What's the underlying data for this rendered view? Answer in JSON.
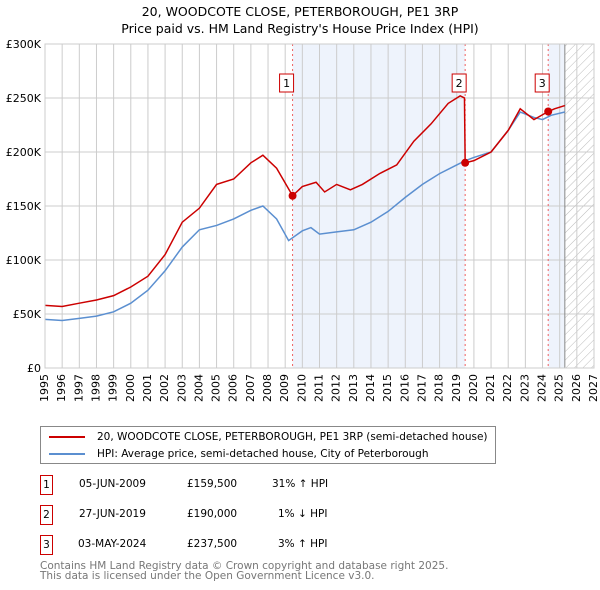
{
  "title": "20, WOODCOTE CLOSE, PETERBOROUGH, PE1 3RP",
  "subtitle": "Price paid vs. HM Land Registry's House Price Index (HPI)",
  "chart_data": {
    "type": "line",
    "xlim": [
      1995,
      2027
    ],
    "ylim": [
      0,
      300000
    ],
    "x_ticks": [
      "1995",
      "1996",
      "1997",
      "1998",
      "1999",
      "2000",
      "2001",
      "2002",
      "2003",
      "2004",
      "2005",
      "2006",
      "2007",
      "2008",
      "2009",
      "2010",
      "2011",
      "2012",
      "2013",
      "2014",
      "2015",
      "2016",
      "2017",
      "2018",
      "2019",
      "2020",
      "2021",
      "2022",
      "2023",
      "2024",
      "2025",
      "2026",
      "2027"
    ],
    "y_ticks": [
      {
        "v": 0,
        "label": "£0"
      },
      {
        "v": 50000,
        "label": "£50K"
      },
      {
        "v": 100000,
        "label": "£100K"
      },
      {
        "v": 150000,
        "label": "£150K"
      },
      {
        "v": 200000,
        "label": "£200K"
      },
      {
        "v": 250000,
        "label": "£250K"
      },
      {
        "v": 300000,
        "label": "£300K"
      }
    ],
    "grid": true,
    "shaded_ranges": [
      [
        2009.43,
        2019.49
      ],
      [
        2024.33,
        2025.3
      ]
    ],
    "forecast_hatch_from": 2025.3,
    "series": [
      {
        "name": "20, WOODCOTE CLOSE, PETERBOROUGH, PE1 3RP (semi-detached house)",
        "color": "#cc0000",
        "x": [
          1995,
          1996,
          1997,
          1998,
          1999,
          2000,
          2001,
          2002,
          2003,
          2004,
          2005,
          2006,
          2007,
          2007.7,
          2008.5,
          2009.43,
          2010,
          2010.8,
          2011.3,
          2012,
          2012.8,
          2013.5,
          2014.5,
          2015.5,
          2016.5,
          2017.5,
          2018.5,
          2019.2,
          2019.45,
          2019.49,
          2020,
          2021,
          2022,
          2022.7,
          2023.5,
          2024.33,
          2024.7,
          2025.3
        ],
        "y": [
          58000,
          57000,
          60000,
          63000,
          67000,
          75000,
          85000,
          105000,
          135000,
          148000,
          170000,
          175000,
          190000,
          197000,
          185000,
          159500,
          168000,
          172000,
          163000,
          170000,
          165000,
          170000,
          180000,
          188000,
          210000,
          226000,
          245000,
          252000,
          250000,
          190000,
          192000,
          200000,
          220000,
          240000,
          230000,
          237500,
          240000,
          243000
        ]
      },
      {
        "name": "HPI: Average price, semi-detached house, City of Peterborough",
        "color": "#5b8fd0",
        "x": [
          1995,
          1996,
          1997,
          1998,
          1999,
          2000,
          2001,
          2002,
          2003,
          2004,
          2005,
          2006,
          2007,
          2007.7,
          2008.5,
          2009.2,
          2010,
          2010.5,
          2011,
          2012,
          2013,
          2014,
          2015,
          2016,
          2017,
          2018,
          2019,
          2019.5,
          2020,
          2021,
          2022,
          2022.7,
          2023.5,
          2024,
          2024.5,
          2025.3
        ],
        "y": [
          45000,
          44000,
          46000,
          48000,
          52000,
          60000,
          72000,
          90000,
          112000,
          128000,
          132000,
          138000,
          146000,
          150000,
          138000,
          118000,
          127000,
          130000,
          124000,
          126000,
          128000,
          135000,
          145000,
          158000,
          170000,
          180000,
          188000,
          192000,
          195000,
          200000,
          220000,
          237000,
          232000,
          230000,
          234000,
          237000
        ]
      }
    ],
    "markers": [
      {
        "label": "1",
        "x": 2009.43,
        "y": 159500
      },
      {
        "label": "2",
        "x": 2019.49,
        "y": 190000
      },
      {
        "label": "3",
        "x": 2024.33,
        "y": 237500
      }
    ]
  },
  "legend": [
    {
      "label": "20, WOODCOTE CLOSE, PETERBOROUGH, PE1 3RP (semi-detached house)"
    },
    {
      "label": "HPI: Average price, semi-detached house, City of Peterborough"
    }
  ],
  "transactions": [
    {
      "num": "1",
      "date": "05-JUN-2009",
      "price": "£159,500",
      "hpi": "31% ↑ HPI"
    },
    {
      "num": "2",
      "date": "27-JUN-2019",
      "price": "£190,000",
      "hpi": "1% ↓ HPI"
    },
    {
      "num": "3",
      "date": "03-MAY-2024",
      "price": "£237,500",
      "hpi": "3% ↑ HPI"
    }
  ],
  "footer": [
    "Contains HM Land Registry data © Crown copyright and database right 2025.",
    "This data is licensed under the Open Government Licence v3.0."
  ]
}
